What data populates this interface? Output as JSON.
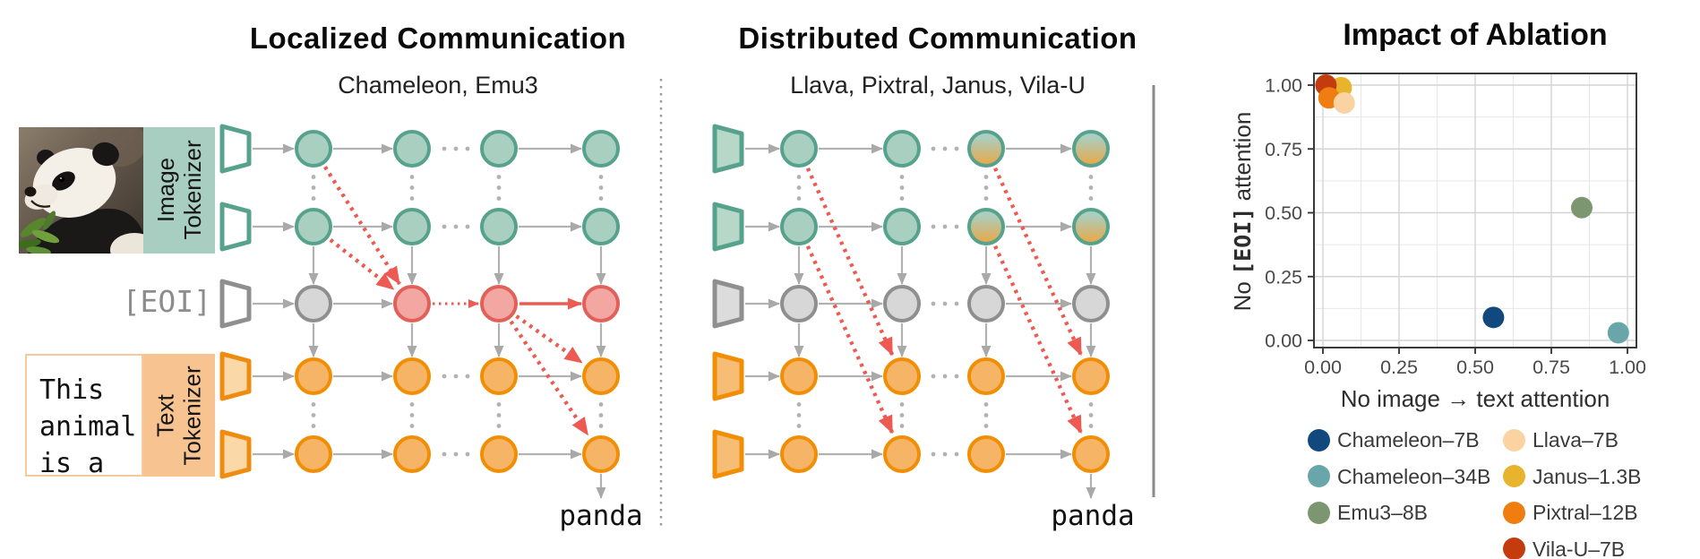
{
  "left_panel": {
    "title": "Localized Communication",
    "subtitle": "Chameleon, Emu3",
    "image_tokenizer_lines": [
      "Image",
      "Tokenizer"
    ],
    "text_tokenizer_lines": [
      "Text",
      "Tokenizer"
    ],
    "eoi_label": "[EOI]",
    "prompt_lines": [
      "This",
      "animal",
      "is a"
    ],
    "output_word": "panda"
  },
  "middle_panel": {
    "title": "Distributed Communication",
    "subtitle": "Llava, Pixtral, Janus, Vila-U",
    "output_word": "panda"
  },
  "chart_data": {
    "type": "scatter",
    "title": "Impact of Ablation",
    "xlabel": "No image → text attention",
    "ylabel_parts": [
      "No ",
      "[EOI]",
      " attention"
    ],
    "xlim": [
      0,
      1
    ],
    "ylim": [
      0,
      1
    ],
    "xticks": [
      "0.00",
      "0.25",
      "0.50",
      "0.75",
      "1.00"
    ],
    "yticks": [
      "0.00",
      "0.25",
      "0.50",
      "0.75",
      "1.00"
    ],
    "grid": "major+minor",
    "legend_position": "bottom",
    "points": [
      {
        "name": "Janus-1.3B",
        "x": 0.06,
        "y": 0.99,
        "color": "#e8b32d"
      },
      {
        "name": "Vila-U-7B",
        "x": 0.01,
        "y": 1.0,
        "color": "#c43c0e"
      },
      {
        "name": "Pixtral-12B",
        "x": 0.02,
        "y": 0.95,
        "color": "#f07d10"
      },
      {
        "name": "Llava-7B",
        "x": 0.07,
        "y": 0.93,
        "color": "#fbd3a3"
      },
      {
        "name": "Emu3-8B",
        "x": 0.85,
        "y": 0.52,
        "color": "#7b9671"
      },
      {
        "name": "Chameleon-7B",
        "x": 0.56,
        "y": 0.09,
        "color": "#11497e"
      },
      {
        "name": "Chameleon-34B",
        "x": 0.97,
        "y": 0.03,
        "color": "#68a6aa"
      }
    ],
    "legend": {
      "column1": [
        {
          "label": "Chameleon–7B",
          "color": "#11497e"
        },
        {
          "label": "Chameleon–34B",
          "color": "#68a6aa"
        },
        {
          "label": "Emu3–8B",
          "color": "#7b9671"
        }
      ],
      "column2": [
        {
          "label": "Llava–7B",
          "color": "#fbd3a3"
        },
        {
          "label": "Janus–1.3B",
          "color": "#e8b32d"
        },
        {
          "label": "Pixtral–12B",
          "color": "#f07d10"
        },
        {
          "label": "Vila-U–7B",
          "color": "#c43c0e"
        }
      ]
    }
  },
  "colors": {
    "arrow_gray": "#b2b2b2",
    "arrow_red": "#ed5a52",
    "dots": "#b2b2b2",
    "divider_dotted": "#9a9a9a",
    "divider_solid": "#8a8a8a",
    "plot_border": "#3a3a3a",
    "grid_major": "#d4d4d4",
    "grid_minor": "#e7e7e7",
    "tick_text": "#4a4a4a",
    "circle_styles": {
      "teal": {
        "fill": "#a9cfc1",
        "stroke": "#56a28c"
      },
      "gray": {
        "fill": "#d7d7d7",
        "stroke": "#8f8f8f"
      },
      "red": {
        "fill": "#f3a7a2",
        "stroke": "#e2605a"
      },
      "orange": {
        "fill": "#f6b466",
        "stroke": "#f18e04"
      },
      "gradient": {
        "fill": "gradient",
        "stroke": "#56a28c",
        "top": "#a9cfc1",
        "bottom": "#e7a94b"
      }
    },
    "trap_styles": {
      "teal-open": {
        "fill": "#ffffff",
        "stroke": "#56a28c"
      },
      "gray-open": {
        "fill": "#ffffff",
        "stroke": "#8f8f8f"
      },
      "orange-soft": {
        "fill": "#fbd8a7",
        "stroke": "#ef8c10"
      },
      "teal-solid": {
        "fill": "#b7d7c9",
        "stroke": "#56a28c"
      },
      "gray-solid": {
        "fill": "#dcdcdc",
        "stroke": "#8f8f8f"
      },
      "orange-solid": {
        "fill": "#f6bd75",
        "stroke": "#f18e04"
      }
    }
  },
  "diagram": {
    "rows": [
      "image-token-1",
      "image-token-2",
      "eoi",
      "text-token-1",
      "text-token-2"
    ],
    "panels": [
      {
        "id": "left",
        "cells": [
          [
            "teal",
            "teal",
            "teal",
            "teal"
          ],
          [
            "teal",
            "teal",
            "teal",
            "teal"
          ],
          [
            "gray",
            "red",
            "red",
            "red"
          ],
          [
            "orange",
            "orange",
            "orange",
            "orange"
          ],
          [
            "orange",
            "orange",
            "orange",
            "orange"
          ]
        ],
        "trap_styles": [
          "teal-open",
          "teal-open",
          "gray-open",
          "orange-soft",
          "orange-soft"
        ],
        "eoi_segments": [
          "gray-arrow",
          "red-dotted",
          "red-solid"
        ],
        "red_links": [
          {
            "from": [
              0,
              0
            ],
            "to": [
              2,
              1
            ]
          },
          {
            "from": [
              1,
              0
            ],
            "to": [
              2,
              1
            ]
          },
          {
            "from": [
              2,
              2
            ],
            "to": [
              3,
              3
            ]
          },
          {
            "from": [
              2,
              2
            ],
            "to": [
              4,
              3
            ]
          }
        ]
      },
      {
        "id": "middle",
        "cells": [
          [
            "teal",
            "teal",
            "gradient",
            "gradient"
          ],
          [
            "teal",
            "teal",
            "gradient",
            "gradient"
          ],
          [
            "gray",
            "gray",
            "gray",
            "gray"
          ],
          [
            "orange",
            "orange",
            "orange",
            "orange"
          ],
          [
            "orange",
            "orange",
            "orange",
            "orange"
          ]
        ],
        "trap_styles": [
          "teal-solid",
          "teal-solid",
          "gray-solid",
          "orange-solid",
          "orange-solid"
        ],
        "eoi_segments": [
          "gray-arrow",
          "hdots",
          "gray-arrow"
        ],
        "red_links": [
          {
            "from": [
              0,
              0
            ],
            "to": [
              3,
              1
            ]
          },
          {
            "from": [
              1,
              0
            ],
            "to": [
              4,
              1
            ]
          },
          {
            "from": [
              0,
              2
            ],
            "to": [
              3,
              3
            ]
          },
          {
            "from": [
              1,
              2
            ],
            "to": [
              4,
              3
            ]
          }
        ]
      }
    ]
  }
}
